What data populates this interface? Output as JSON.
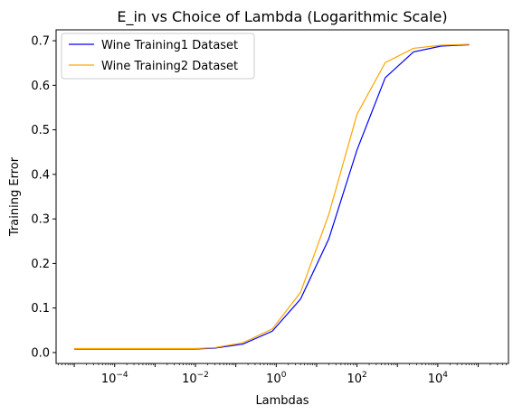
{
  "chart_data": {
    "type": "line",
    "title": "E_in vs Choice of Lambda (Logarithmic Scale)",
    "xlabel": "Lambdas",
    "ylabel": "Training Error",
    "x_scale": "log",
    "x_tick_exponents": [
      -4,
      -2,
      0,
      2,
      4
    ],
    "x_tick_base": "10",
    "y_ticks": [
      "0.0",
      "0.1",
      "0.2",
      "0.3",
      "0.4",
      "0.5",
      "0.6",
      "0.7"
    ],
    "ylim": [
      -0.0245,
      0.7245
    ],
    "xlim_log10": [
      -5.45,
      5.75
    ],
    "grid": false,
    "legend_position": "top-left",
    "x": [
      1e-05,
      0.0001,
      0.001,
      0.01,
      0.03,
      0.15,
      0.8,
      4,
      20,
      100,
      500,
      2500,
      12000,
      60000
    ],
    "series": [
      {
        "name": "Wine Training1 Dataset",
        "color": "#0000ff",
        "values": [
          0.008,
          0.008,
          0.008,
          0.008,
          0.01,
          0.019,
          0.048,
          0.12,
          0.255,
          0.455,
          0.617,
          0.675,
          0.688,
          0.691
        ]
      },
      {
        "name": "Wine Training2 Dataset",
        "color": "#ffa500",
        "values": [
          0.009,
          0.009,
          0.009,
          0.009,
          0.011,
          0.022,
          0.053,
          0.135,
          0.31,
          0.535,
          0.651,
          0.683,
          0.69,
          0.692
        ]
      }
    ]
  }
}
